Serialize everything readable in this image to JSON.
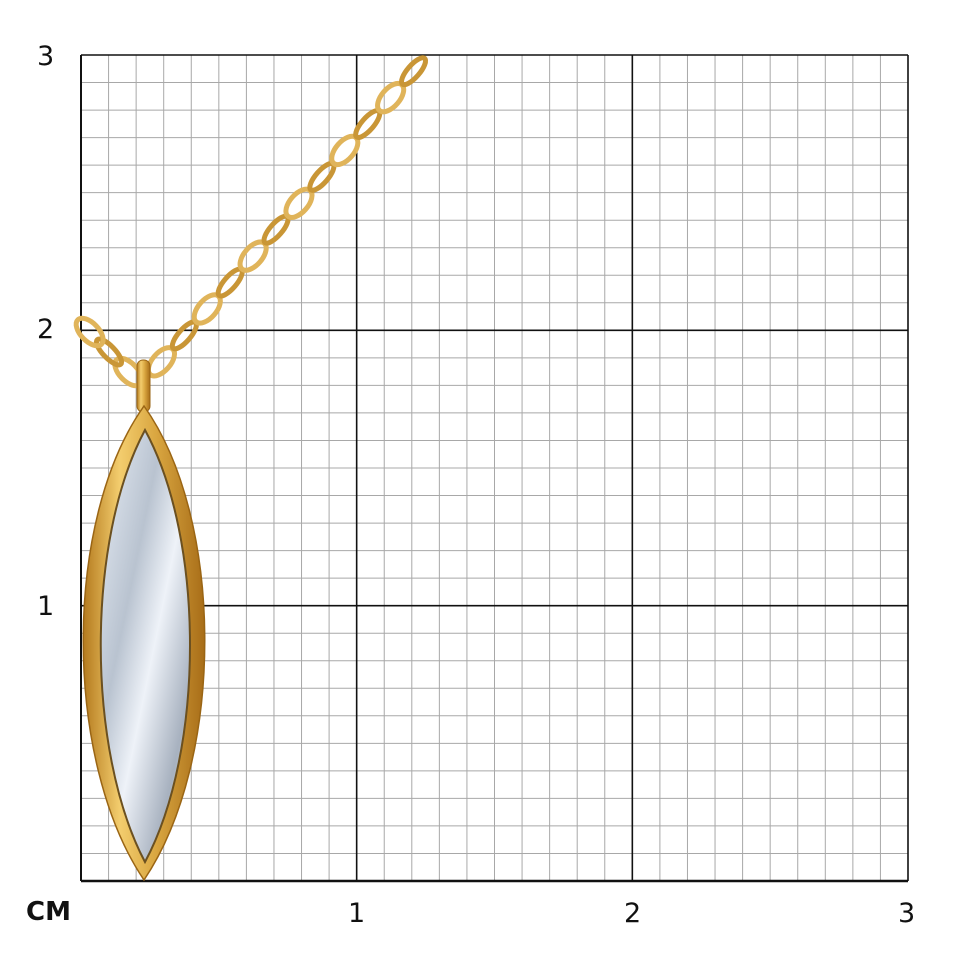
{
  "scale": {
    "unit_label": "CM",
    "x_ticks": [
      "1",
      "2",
      "3"
    ],
    "y_ticks": [
      "3",
      "2",
      "1"
    ],
    "range_cm": [
      0,
      3
    ],
    "minor_divisions_per_cm": 10
  },
  "product": {
    "type": "pendant-on-chain",
    "metal_color": "#d9a640",
    "stone_color": "#c9d2de"
  },
  "colors": {
    "major_grid": "#111111",
    "minor_grid": "#a8a8a8"
  }
}
